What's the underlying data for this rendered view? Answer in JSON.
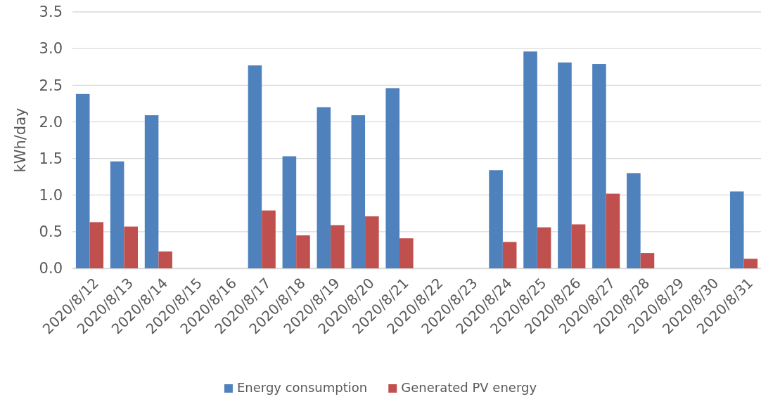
{
  "chart_data": {
    "type": "bar",
    "ylabel": "kWh/day",
    "categories": [
      "2020/8/12",
      "2020/8/13",
      "2020/8/14",
      "2020/8/15",
      "2020/8/16",
      "2020/8/17",
      "2020/8/18",
      "2020/8/19",
      "2020/8/20",
      "2020/8/21",
      "2020/8/22",
      "2020/8/23",
      "2020/8/24",
      "2020/8/25",
      "2020/8/26",
      "2020/8/27",
      "2020/8/28",
      "2020/8/29",
      "2020/8/30",
      "2020/8/31"
    ],
    "series": [
      {
        "name": "Energy consumption",
        "color": "#4f81bd",
        "values": [
          2.38,
          1.46,
          2.09,
          null,
          null,
          2.77,
          1.53,
          2.2,
          2.09,
          2.46,
          null,
          null,
          1.34,
          2.96,
          2.81,
          2.79,
          1.3,
          null,
          null,
          1.05
        ]
      },
      {
        "name": "Generated PV energy",
        "color": "#c0504d",
        "values": [
          0.63,
          0.57,
          0.23,
          null,
          null,
          0.79,
          0.45,
          0.59,
          0.71,
          0.41,
          null,
          null,
          0.36,
          0.56,
          0.6,
          1.02,
          0.21,
          null,
          null,
          0.13
        ]
      }
    ],
    "ylim": [
      0,
      3.5
    ],
    "yticks": [
      {
        "value": 0,
        "label": "0.0"
      },
      {
        "value": 0.5,
        "label": "0.5"
      },
      {
        "value": 1,
        "label": "1.0"
      },
      {
        "value": 1.5,
        "label": "1.5"
      },
      {
        "value": 2,
        "label": "2.0"
      },
      {
        "value": 2.5,
        "label": "2.5"
      },
      {
        "value": 3,
        "label": "3.0"
      },
      {
        "value": 3.5,
        "label": "3.5"
      }
    ],
    "grid": "y",
    "legend": "bottom"
  }
}
